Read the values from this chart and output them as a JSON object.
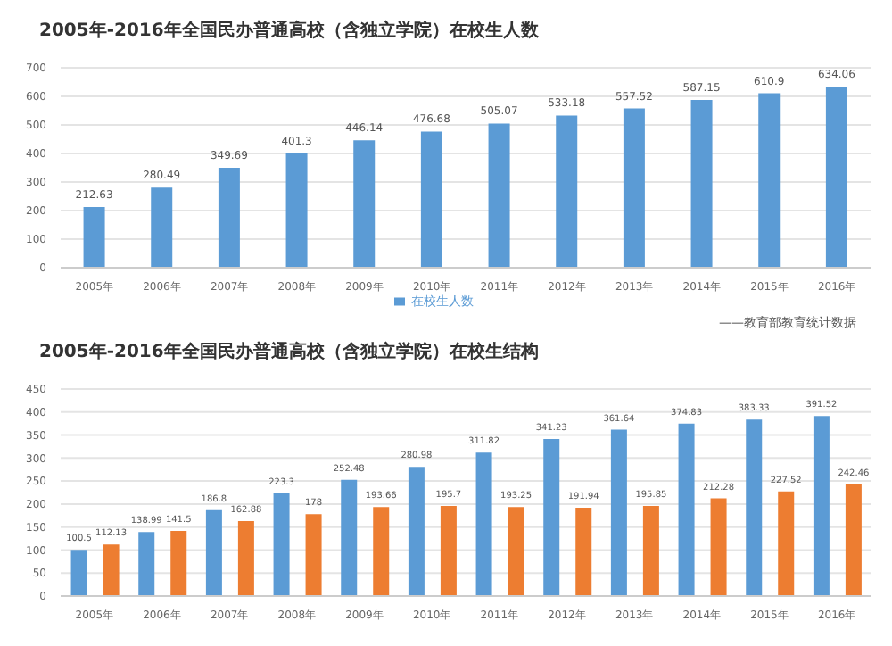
{
  "chart_data": [
    {
      "type": "bar",
      "title": "2005年-2016年全国民办普通高校（含独立学院）在校生人数",
      "categories": [
        "2005年",
        "2006年",
        "2007年",
        "2008年",
        "2009年",
        "2010年",
        "2011年",
        "2012年",
        "2013年",
        "2014年",
        "2015年",
        "2016年"
      ],
      "series": [
        {
          "name": "在校生人数",
          "color": "#5b9bd5",
          "values": [
            212.63,
            280.49,
            349.69,
            401.3,
            446.14,
            476.68,
            505.07,
            533.18,
            557.52,
            587.15,
            610.9,
            634.06
          ]
        }
      ],
      "ylim": [
        0,
        700
      ],
      "yticks": [
        0,
        100,
        200,
        300,
        400,
        500,
        600,
        700
      ],
      "grid": "y",
      "legend": "bottom",
      "data_labels": true,
      "annotations": [
        "——教育部教育统计数据"
      ]
    },
    {
      "type": "bar",
      "title": "2005年-2016年全国民办普通高校（含独立学院）在校生结构",
      "categories": [
        "2005年",
        "2006年",
        "2007年",
        "2008年",
        "2009年",
        "2010年",
        "2011年",
        "2012年",
        "2013年",
        "2014年",
        "2015年",
        "2016年"
      ],
      "series": [
        {
          "color": "#5b9bd5",
          "values": [
            100.5,
            138.99,
            186.8,
            223.3,
            252.48,
            280.98,
            311.82,
            341.23,
            361.64,
            374.83,
            383.33,
            391.52
          ]
        },
        {
          "color": "#ed7d31",
          "values": [
            112.13,
            141.5,
            162.88,
            178,
            193.66,
            195.7,
            193.25,
            191.94,
            195.85,
            212.28,
            227.52,
            242.46
          ]
        }
      ],
      "ylim": [
        0,
        450
      ],
      "yticks": [
        0,
        50,
        100,
        150,
        200,
        250,
        300,
        350,
        400,
        450
      ],
      "grid": "y",
      "data_labels": true
    }
  ]
}
